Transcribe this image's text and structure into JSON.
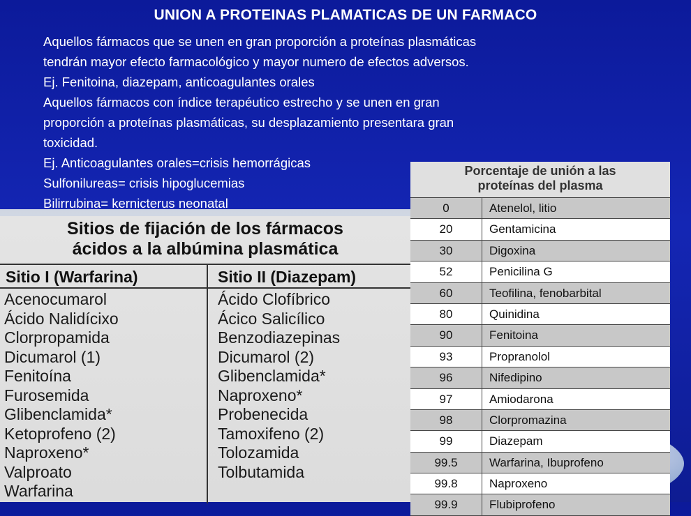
{
  "slide": {
    "title": "UNION A PROTEINAS PLAMATICAS DE UN FARMACO",
    "lines": [
      "Aquellos fármacos que se unen en gran proporción a proteínas plasmáticas",
      "tendrán mayor efecto farmacológico y mayor numero de efectos adversos.",
      "Ej. Fenitoina, diazepam, anticoagulantes orales",
      "Aquellos fármacos con índice terapéutico estrecho y se unen en gran",
      "proporción a proteínas plasmáticas, su desplazamiento presentara gran",
      "toxicidad.",
      "Ej. Anticoagulantes orales=crisis hemorrágicas",
      "Sulfonilureas= crisis hipoglucemias",
      "Bilirrubina= kernicterus neonatal"
    ]
  },
  "albumin_table": {
    "title_line1": "Sitios de fijación de los fármacos",
    "title_line2": "ácidos a la albúmina plasmática",
    "col1_header": "Sitio I (Warfarina)",
    "col2_header": "Sitio II (Diazepam)",
    "col1_items": [
      "Acenocumarol",
      "Ácido Nalidícixo",
      "Clorpropamida",
      "Dicumarol (1)",
      "Fenitoína",
      "Furosemida",
      "Glibenclamida*",
      "Ketoprofeno (2)",
      "Naproxeno*",
      "Valproato",
      "Warfarina"
    ],
    "col2_items": [
      "Ácido Clofíbrico",
      "Ácico Salicílico",
      "Benzodiazepinas",
      "Dicumarol (2)",
      "Glibenclamida*",
      "Naproxeno*",
      "Probenecida",
      "Tamoxifeno (2)",
      "Tolozamida",
      "Tolbutamida"
    ]
  },
  "binding_table": {
    "title_line1": "Porcentaje de unión a las",
    "title_line2": "proteínas del plasma",
    "rows": [
      {
        "pct": "0",
        "drug": "Atenelol, litio"
      },
      {
        "pct": "20",
        "drug": "Gentamicina"
      },
      {
        "pct": "30",
        "drug": "Digoxina"
      },
      {
        "pct": "52",
        "drug": "Penicilina G"
      },
      {
        "pct": "60",
        "drug": "Teofilina, fenobarbital"
      },
      {
        "pct": "80",
        "drug": "Quinidina"
      },
      {
        "pct": "90",
        "drug": "Fenitoina"
      },
      {
        "pct": "93",
        "drug": "Propranolol"
      },
      {
        "pct": "96",
        "drug": "Nifedipino"
      },
      {
        "pct": "97",
        "drug": "Amiodarona"
      },
      {
        "pct": "98",
        "drug": "Clorpromazina"
      },
      {
        "pct": "99",
        "drug": "Diazepam"
      },
      {
        "pct": "99.5",
        "drug": "Warfarina, Ibuprofeno"
      },
      {
        "pct": "99.8",
        "drug": "Naproxeno"
      },
      {
        "pct": "99.9",
        "drug": "Flubiprofeno"
      }
    ]
  }
}
